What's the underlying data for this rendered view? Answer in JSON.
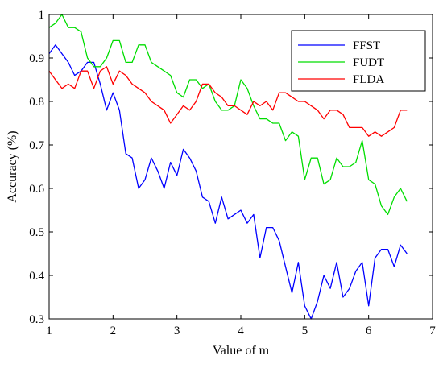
{
  "chart_data": {
    "type": "line",
    "title": "",
    "xlabel": "Value of m",
    "ylabel": "Accuracy (%)",
    "xlim": [
      1,
      7
    ],
    "ylim": [
      0.3,
      1
    ],
    "xticks": [
      1,
      2,
      3,
      4,
      5,
      6,
      7
    ],
    "yticks": [
      0.3,
      0.4,
      0.5,
      0.6,
      0.7,
      0.8,
      0.9,
      1
    ],
    "xtick_labels": [
      "1",
      "2",
      "3",
      "4",
      "5",
      "6",
      "7"
    ],
    "ytick_labels": [
      "0.3",
      "0.4",
      "0.5",
      "0.6",
      "0.7",
      "0.8",
      "0.9",
      "1"
    ],
    "grid": false,
    "legend_position": "top-right",
    "x": [
      1.0,
      1.1,
      1.2,
      1.3,
      1.4,
      1.5,
      1.6,
      1.7,
      1.8,
      1.9,
      2.0,
      2.1,
      2.2,
      2.3,
      2.4,
      2.5,
      2.6,
      2.7,
      2.8,
      2.9,
      3.0,
      3.1,
      3.2,
      3.3,
      3.4,
      3.5,
      3.6,
      3.7,
      3.8,
      3.9,
      4.0,
      4.1,
      4.2,
      4.3,
      4.4,
      4.5,
      4.6,
      4.7,
      4.8,
      4.9,
      5.0,
      5.1,
      5.2,
      5.3,
      5.4,
      5.5,
      5.6,
      5.7,
      5.8,
      5.9,
      6.0,
      6.1,
      6.2,
      6.3,
      6.4,
      6.5,
      6.6
    ],
    "series": [
      {
        "name": "FFST",
        "color": "#0000ff",
        "values": [
          0.91,
          0.93,
          0.91,
          0.89,
          0.86,
          0.87,
          0.89,
          0.89,
          0.84,
          0.78,
          0.82,
          0.78,
          0.68,
          0.67,
          0.6,
          0.62,
          0.67,
          0.64,
          0.6,
          0.66,
          0.63,
          0.69,
          0.67,
          0.64,
          0.58,
          0.57,
          0.52,
          0.58,
          0.53,
          0.54,
          0.55,
          0.52,
          0.54,
          0.44,
          0.51,
          0.51,
          0.48,
          0.42,
          0.36,
          0.43,
          0.33,
          0.3,
          0.34,
          0.4,
          0.37,
          0.43,
          0.35,
          0.37,
          0.41,
          0.43,
          0.33,
          0.44,
          0.46,
          0.46,
          0.42,
          0.47,
          0.45
        ]
      },
      {
        "name": "FUDT",
        "color": "#00dd00",
        "values": [
          0.97,
          0.98,
          1.0,
          0.97,
          0.97,
          0.96,
          0.9,
          0.88,
          0.88,
          0.9,
          0.94,
          0.94,
          0.89,
          0.89,
          0.93,
          0.93,
          0.89,
          0.88,
          0.87,
          0.86,
          0.82,
          0.81,
          0.85,
          0.85,
          0.83,
          0.84,
          0.8,
          0.78,
          0.78,
          0.79,
          0.85,
          0.83,
          0.79,
          0.76,
          0.76,
          0.75,
          0.75,
          0.71,
          0.73,
          0.72,
          0.62,
          0.67,
          0.67,
          0.61,
          0.62,
          0.67,
          0.65,
          0.65,
          0.66,
          0.71,
          0.62,
          0.61,
          0.56,
          0.54,
          0.58,
          0.6,
          0.57
        ]
      },
      {
        "name": "FLDA",
        "color": "#ff0000",
        "values": [
          0.87,
          0.85,
          0.83,
          0.84,
          0.83,
          0.87,
          0.87,
          0.83,
          0.87,
          0.88,
          0.84,
          0.87,
          0.86,
          0.84,
          0.83,
          0.82,
          0.8,
          0.79,
          0.78,
          0.75,
          0.77,
          0.79,
          0.78,
          0.8,
          0.84,
          0.84,
          0.82,
          0.81,
          0.79,
          0.79,
          0.78,
          0.77,
          0.8,
          0.79,
          0.8,
          0.78,
          0.82,
          0.82,
          0.81,
          0.8,
          0.8,
          0.79,
          0.78,
          0.76,
          0.78,
          0.78,
          0.77,
          0.74,
          0.74,
          0.74,
          0.72,
          0.73,
          0.72,
          0.73,
          0.74,
          0.78,
          0.78
        ]
      }
    ]
  }
}
